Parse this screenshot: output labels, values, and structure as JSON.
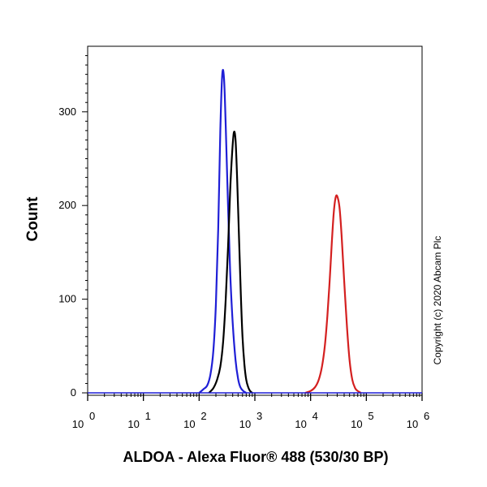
{
  "chart_data": {
    "type": "line",
    "xlabel": "ALDOA - Alexa Fluor® 488 (530/30 BP)",
    "ylabel": "Count",
    "xscale": "log",
    "xlim": [
      1,
      1000000
    ],
    "ylim": [
      0,
      370
    ],
    "x_tick_labels": [
      {
        "base": "10",
        "exp": "0"
      },
      {
        "base": "10",
        "exp": "1"
      },
      {
        "base": "10",
        "exp": "2"
      },
      {
        "base": "10",
        "exp": "3"
      },
      {
        "base": "10",
        "exp": "4"
      },
      {
        "base": "10",
        "exp": "5"
      },
      {
        "base": "10",
        "exp": "6"
      }
    ],
    "y_ticks": [
      "0",
      "100",
      "200",
      "300"
    ],
    "grid": false,
    "legend": "none",
    "copyright": "Copyright (c) 2020 Abcam Plc",
    "series": [
      {
        "color": "#1f1fd6",
        "x": [
          100,
          120,
          140,
          160,
          180,
          200,
          220,
          240,
          260,
          280,
          300,
          330,
          360,
          400,
          450,
          500,
          550,
          620,
          700
        ],
        "y": [
          0,
          4,
          8,
          20,
          45,
          95,
          175,
          280,
          340,
          335,
          285,
          200,
          130,
          75,
          35,
          15,
          6,
          2,
          0
        ]
      },
      {
        "color": "#000000",
        "x": [
          150,
          180,
          210,
          240,
          270,
          300,
          330,
          360,
          390,
          420,
          450,
          480,
          520,
          560,
          600,
          650,
          700,
          760,
          820,
          900
        ],
        "y": [
          0,
          5,
          14,
          28,
          55,
          100,
          155,
          215,
          255,
          278,
          270,
          230,
          165,
          105,
          60,
          30,
          14,
          6,
          2,
          0
        ]
      },
      {
        "color": "#d42020",
        "x": [
          8000,
          10000,
          12000,
          14000,
          16000,
          18000,
          20000,
          22000,
          24000,
          26000,
          28000,
          30000,
          33000,
          36000,
          40000,
          45000,
          50000,
          56000,
          63000,
          70000,
          80000
        ],
        "y": [
          0,
          2,
          6,
          14,
          28,
          50,
          82,
          120,
          160,
          192,
          208,
          210,
          198,
          168,
          120,
          70,
          35,
          14,
          5,
          2,
          0
        ]
      }
    ]
  }
}
